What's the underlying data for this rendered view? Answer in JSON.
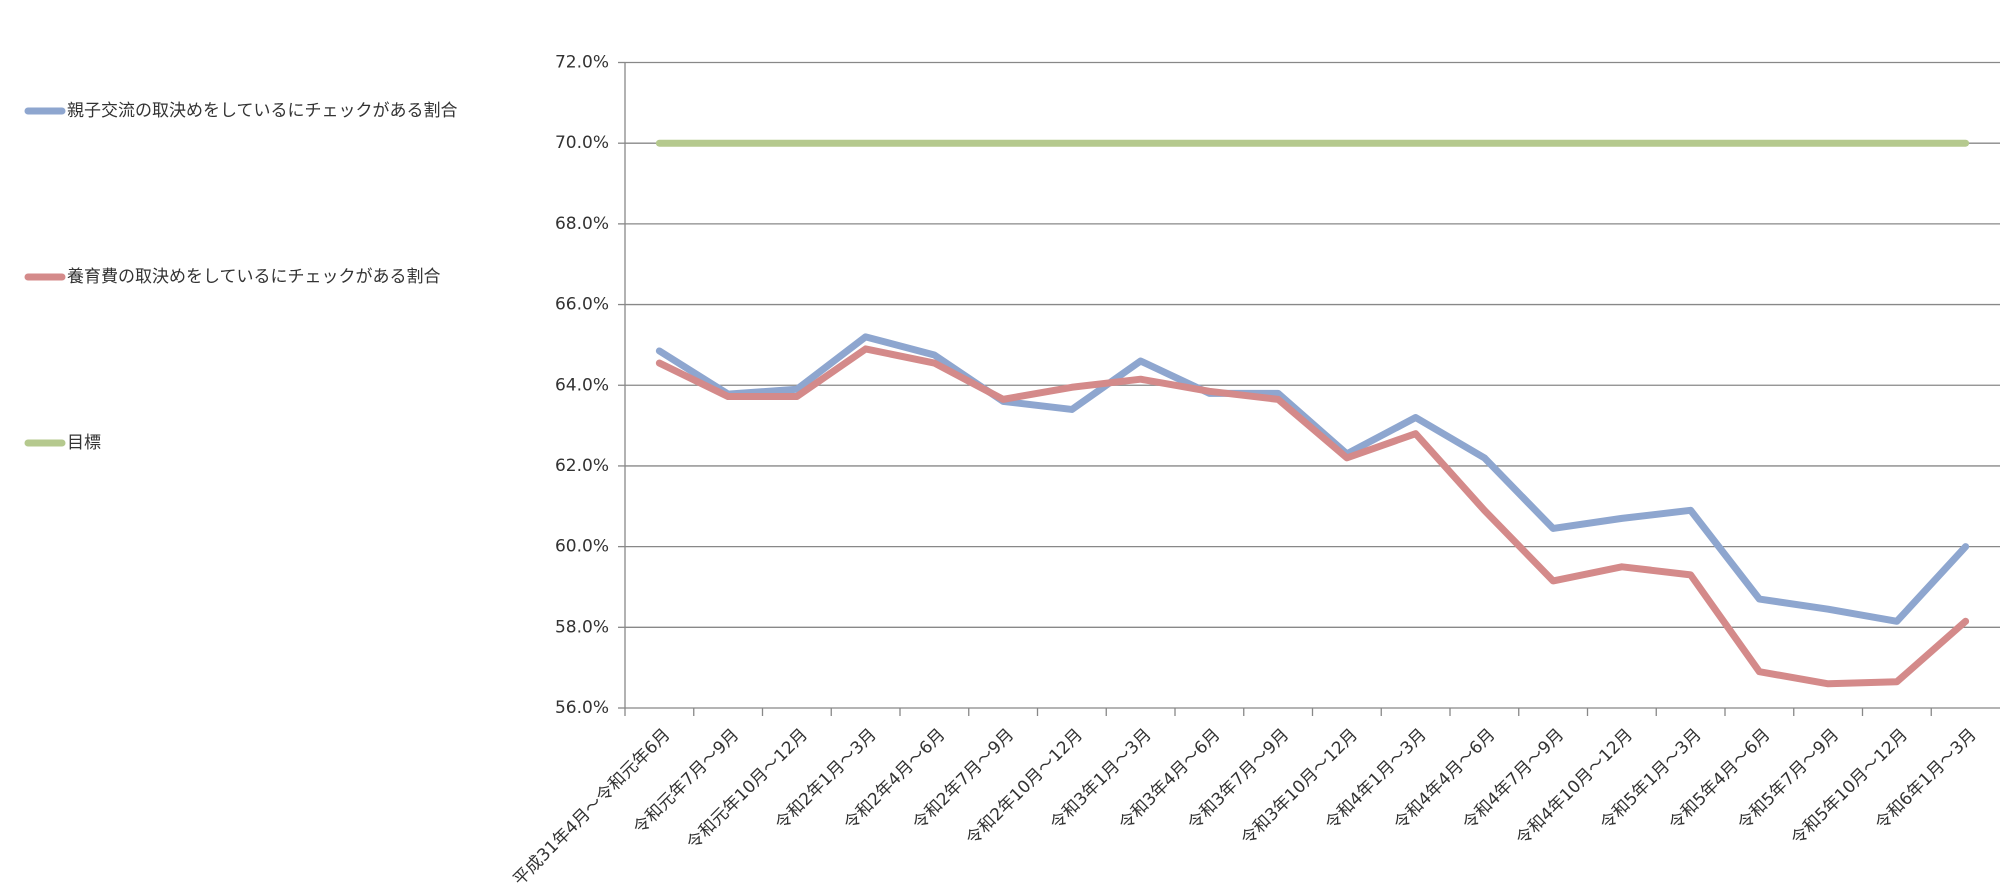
{
  "chart_data": {
    "type": "line",
    "categories": [
      "平成31年4月～令和元年6月",
      "令和元年7月～9月",
      "令和元年10月～12月",
      "令和2年1月～3月",
      "令和2年4月～6月",
      "令和2年7月～9月",
      "令和2年10月～12月",
      "令和3年1月～3月",
      "令和3年4月～6月",
      "令和3年7月～9月",
      "令和3年10月～12月",
      "令和4年1月～3月",
      "令和4年4月～6月",
      "令和4年7月～9月",
      "令和4年10月～12月",
      "令和5年1月～3月",
      "令和5年4月～6月",
      "令和5年7月～9月",
      "令和5年10月～12月",
      "令和6年1月～3月"
    ],
    "series": [
      {
        "name": "親子交流の取決めをしているにチェックがある割合",
        "color": "#8ea6cf",
        "values": [
          64.85,
          63.78,
          63.9,
          65.2,
          64.75,
          63.6,
          63.4,
          64.6,
          63.8,
          63.8,
          62.3,
          63.2,
          62.2,
          60.45,
          60.7,
          60.9,
          58.7,
          58.45,
          58.15,
          60.0
        ]
      },
      {
        "name": "養育費の取決めをしているにチェックがある割合",
        "color": "#d48a8a",
        "values": [
          64.55,
          63.72,
          63.72,
          64.9,
          64.55,
          63.65,
          63.95,
          64.15,
          63.85,
          63.65,
          62.2,
          62.8,
          60.9,
          59.15,
          59.5,
          59.3,
          56.9,
          56.6,
          56.65,
          58.15
        ]
      },
      {
        "name": "目標",
        "color": "#b5c98e",
        "values": [
          70,
          70,
          70,
          70,
          70,
          70,
          70,
          70,
          70,
          70,
          70,
          70,
          70,
          70,
          70,
          70,
          70,
          70,
          70,
          70
        ]
      }
    ],
    "ylim": [
      56,
      72
    ],
    "yticks": [
      {
        "value": 56,
        "label": "56.0%"
      },
      {
        "value": 58,
        "label": "58.0%"
      },
      {
        "value": 60,
        "label": "60.0%"
      },
      {
        "value": 62,
        "label": "62.0%"
      },
      {
        "value": 64,
        "label": "64.0%"
      },
      {
        "value": 66,
        "label": "66.0%"
      },
      {
        "value": 68,
        "label": "68.0%"
      },
      {
        "value": 70,
        "label": "70.0%"
      },
      {
        "value": 72,
        "label": "72.0%"
      }
    ],
    "grid": true,
    "legend": "left"
  }
}
